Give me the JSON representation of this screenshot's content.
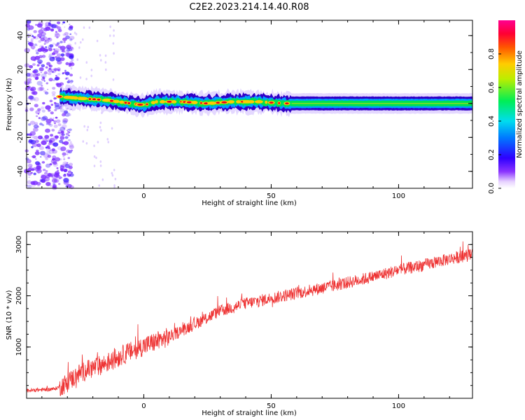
{
  "title": "C2E2.2023.214.14.40.R08",
  "chart_data": [
    {
      "type": "heatmap",
      "xlabel": "Height of straight line (km)",
      "ylabel": "Frequency (Hz)",
      "xlim": [
        -46,
        129
      ],
      "ylim": [
        -50,
        49
      ],
      "xticks": [
        "0",
        "50",
        "100"
      ],
      "xtick_values": [
        0,
        50,
        100
      ],
      "yticks": [
        "40",
        "20",
        "0",
        "-20",
        "-40"
      ],
      "ytick_values": [
        40,
        20,
        0,
        -20,
        -40
      ],
      "colorbar": {
        "label": "Normalized spectral amplitude",
        "range": [
          0,
          1
        ],
        "ticks": [
          "0.0",
          "0.2",
          "0.4",
          "0.6",
          "0.8"
        ],
        "tick_values": [
          0,
          0.2,
          0.4,
          0.6,
          0.8
        ]
      },
      "noise_region_x": [
        -46,
        -29
      ],
      "band_center": [
        [
          -33,
          4
        ],
        [
          -25,
          3
        ],
        [
          -15,
          2
        ],
        [
          -5,
          0
        ],
        [
          0,
          -1
        ],
        [
          5,
          1
        ],
        [
          15,
          1
        ],
        [
          25,
          0
        ],
        [
          35,
          1
        ],
        [
          45,
          1
        ],
        [
          55,
          0
        ],
        [
          60,
          0
        ],
        [
          80,
          0
        ],
        [
          100,
          0
        ],
        [
          129,
          0
        ]
      ],
      "band_halfwidth_hz": 3,
      "peak_color": "#e8001c",
      "band_color": "#00e050",
      "edge_color": "#3000c8",
      "noise_color": "#7b2cff"
    },
    {
      "type": "line",
      "xlabel": "Height of straight line (km)",
      "ylabel": "SNR (10 * v/v)",
      "xlim": [
        -46,
        129
      ],
      "ylim": [
        0,
        3250
      ],
      "xticks": [
        "0",
        "50",
        "100"
      ],
      "xtick_values": [
        0,
        50,
        100
      ],
      "yticks": [
        "1000",
        "2000",
        "3000"
      ],
      "ytick_values": [
        1000,
        2000,
        3000
      ],
      "line_color": "#ee3333",
      "trend": [
        [
          -46,
          150
        ],
        [
          -35,
          180
        ],
        [
          -30,
          300
        ],
        [
          -25,
          500
        ],
        [
          -15,
          680
        ],
        [
          -8,
          850
        ],
        [
          0,
          1020
        ],
        [
          10,
          1200
        ],
        [
          20,
          1450
        ],
        [
          30,
          1700
        ],
        [
          40,
          1850
        ],
        [
          50,
          1950
        ],
        [
          60,
          2050
        ],
        [
          75,
          2200
        ],
        [
          90,
          2370
        ],
        [
          100,
          2500
        ],
        [
          110,
          2600
        ],
        [
          120,
          2720
        ],
        [
          129,
          2800
        ]
      ]
    }
  ]
}
